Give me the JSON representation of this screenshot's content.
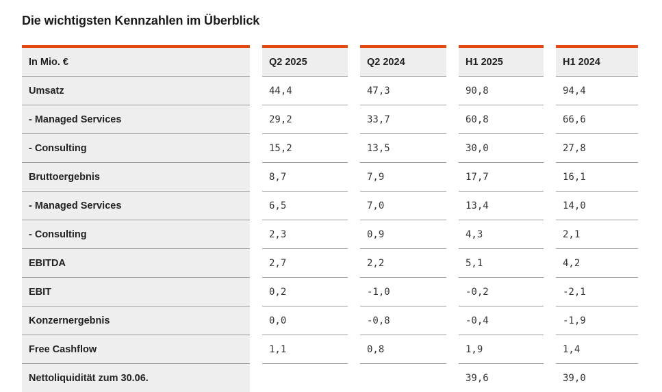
{
  "title": "Die wichtigsten Kennzahlen im Überblick",
  "accent_color": "#e4490f",
  "header_bg": "#eeeeee",
  "table": {
    "label_header": "In Mio. €",
    "columns": [
      "Q2 2025",
      "Q2 2024",
      "H1 2025",
      "H1 2024"
    ],
    "rows": [
      {
        "label": "Umsatz",
        "values": [
          "44,4",
          "47,3",
          "90,8",
          "94,4"
        ]
      },
      {
        "label": "- Managed Services",
        "values": [
          "29,2",
          "33,7",
          "60,8",
          "66,6"
        ]
      },
      {
        "label": "- Consulting",
        "values": [
          "15,2",
          "13,5",
          "30,0",
          "27,8"
        ]
      },
      {
        "label": "Bruttoergebnis",
        "values": [
          "8,7",
          "7,9",
          "17,7",
          "16,1"
        ]
      },
      {
        "label": "- Managed Services",
        "values": [
          "6,5",
          "7,0",
          "13,4",
          "14,0"
        ]
      },
      {
        "label": "- Consulting",
        "values": [
          "2,3",
          "0,9",
          "4,3",
          "2,1"
        ]
      },
      {
        "label": "EBITDA",
        "values": [
          "2,7",
          "2,2",
          "5,1",
          "4,2"
        ]
      },
      {
        "label": "EBIT",
        "values": [
          "0,2",
          "-1,0",
          "-0,2",
          "-2,1"
        ]
      },
      {
        "label": "Konzernergebnis",
        "values": [
          "0,0",
          "-0,8",
          "-0,4",
          "-1,9"
        ]
      },
      {
        "label": "Free Cashflow",
        "values": [
          "1,1",
          "0,8",
          "1,9",
          "1,4"
        ]
      },
      {
        "label": "Nettoliquidität zum 30.06.",
        "values": [
          "",
          "",
          "39,6",
          "39,0"
        ]
      }
    ]
  }
}
